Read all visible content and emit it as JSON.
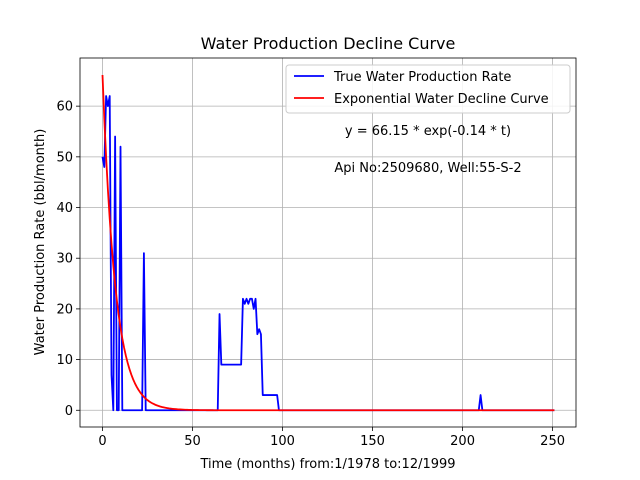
{
  "chart_data": {
    "type": "line",
    "title": "Water Production Decline Curve",
    "xlabel": "Time (months) from:1/1978 to:12/1999",
    "ylabel": "Water Production Rate (bbl/month)",
    "xlim": [
      -12.5,
      263
    ],
    "ylim": [
      -3.3,
      69.5
    ],
    "xticks": [
      0,
      50,
      100,
      150,
      200,
      250
    ],
    "yticks": [
      0,
      10,
      20,
      30,
      40,
      50,
      60
    ],
    "grid": true,
    "legend_position": "top-right",
    "annotations": [
      "y = 66.15 * exp(-0.14 * t)",
      "Api No:2509680, Well:55-S-2"
    ],
    "series": [
      {
        "name": "True Water Production Rate",
        "color": "#0000ff",
        "x": [
          0,
          1,
          2,
          3,
          4,
          5,
          6,
          7,
          8,
          9,
          10,
          11,
          12,
          22,
          23,
          24,
          64,
          65,
          66,
          77,
          78,
          79,
          80,
          81,
          82,
          83,
          84,
          85,
          86,
          87,
          88,
          89,
          90,
          97,
          98,
          209,
          210,
          211,
          251
        ],
        "y": [
          50,
          48,
          62,
          60,
          62,
          7,
          0,
          54,
          0,
          0,
          52,
          0,
          0,
          0,
          31,
          0,
          0,
          19,
          9,
          9,
          22,
          21,
          22,
          21,
          22,
          22,
          20,
          22,
          15,
          16,
          15,
          3,
          3,
          3,
          0,
          0,
          3,
          0,
          0
        ]
      },
      {
        "name": "Exponential Water Decline Curve",
        "color": "#ff0000",
        "model": {
          "a": 66.15,
          "b": -0.14
        },
        "x_range": [
          0,
          251
        ]
      }
    ]
  }
}
